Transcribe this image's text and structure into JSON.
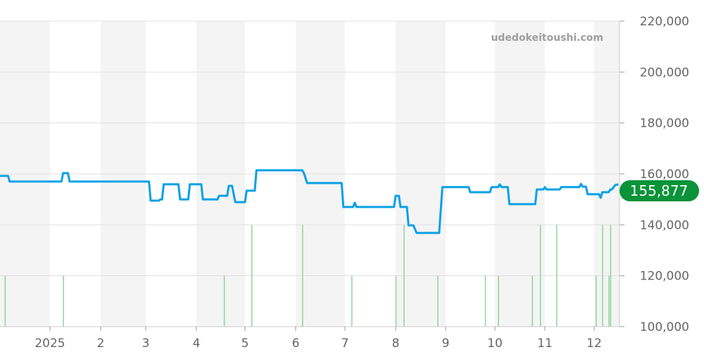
{
  "chart_data": {
    "type": "line",
    "watermark": "udedokeitoushi.com",
    "current_value_label": "155,877",
    "ylim": [
      100000,
      220000
    ],
    "y_ticks": [
      "100,000",
      "120,000",
      "140,000",
      "160,000",
      "180,000",
      "200,000",
      "220,000"
    ],
    "y_tick_values": [
      100000,
      120000,
      140000,
      160000,
      180000,
      200000,
      220000
    ],
    "xlim": [
      "2024-12-01",
      "2025-12-16"
    ],
    "x_ticks": [
      {
        "date": "2025-01-01",
        "label": "2025"
      },
      {
        "date": "2025-02-01",
        "label": "2"
      },
      {
        "date": "2025-03-01",
        "label": "3"
      },
      {
        "date": "2025-04-01",
        "label": "4"
      },
      {
        "date": "2025-05-01",
        "label": "5"
      },
      {
        "date": "2025-06-01",
        "label": "6"
      },
      {
        "date": "2025-07-01",
        "label": "7"
      },
      {
        "date": "2025-08-01",
        "label": "8"
      },
      {
        "date": "2025-09-01",
        "label": "9"
      },
      {
        "date": "2025-10-01",
        "label": "10"
      },
      {
        "date": "2025-11-01",
        "label": "11"
      },
      {
        "date": "2025-12-01",
        "label": "12"
      }
    ],
    "grid": true,
    "alternating_month_shading": true,
    "colors": {
      "line": "#0aa0e6",
      "volume": "#8fd49a",
      "badge": "#0a9338",
      "shade": "#f4f4f4",
      "grid": "#e0e0e0"
    },
    "series": [
      {
        "points": [
          [
            "2024-12-01",
            159200
          ],
          [
            "2024-12-06",
            159200
          ],
          [
            "2024-12-07",
            157000
          ],
          [
            "2025-01-08",
            157000
          ],
          [
            "2025-01-09",
            160300
          ],
          [
            "2025-01-12",
            160300
          ],
          [
            "2025-01-13",
            157000
          ],
          [
            "2025-03-03",
            157000
          ],
          [
            "2025-03-04",
            149500
          ],
          [
            "2025-03-09",
            149500
          ],
          [
            "2025-03-10",
            150000
          ],
          [
            "2025-03-11",
            150000
          ],
          [
            "2025-03-12",
            155900
          ],
          [
            "2025-03-21",
            155900
          ],
          [
            "2025-03-22",
            150000
          ],
          [
            "2025-03-27",
            150000
          ],
          [
            "2025-03-28",
            155900
          ],
          [
            "2025-04-04",
            155900
          ],
          [
            "2025-04-05",
            150000
          ],
          [
            "2025-04-14",
            150000
          ],
          [
            "2025-04-15",
            151400
          ],
          [
            "2025-04-20",
            151400
          ],
          [
            "2025-04-21",
            155300
          ],
          [
            "2025-04-23",
            155300
          ],
          [
            "2025-04-25",
            148900
          ],
          [
            "2025-05-01",
            148900
          ],
          [
            "2025-05-02",
            153400
          ],
          [
            "2025-05-07",
            153400
          ],
          [
            "2025-05-08",
            161400
          ],
          [
            "2025-06-05",
            161400
          ],
          [
            "2025-06-06",
            160300
          ],
          [
            "2025-06-08",
            156400
          ],
          [
            "2025-06-29",
            156400
          ],
          [
            "2025-06-30",
            147000
          ],
          [
            "2025-07-06",
            147000
          ],
          [
            "2025-07-07",
            148700
          ],
          [
            "2025-07-08",
            147000
          ],
          [
            "2025-07-31",
            147000
          ],
          [
            "2025-08-01",
            151400
          ],
          [
            "2025-08-03",
            151400
          ],
          [
            "2025-08-04",
            147000
          ],
          [
            "2025-08-08",
            147000
          ],
          [
            "2025-08-09",
            139800
          ],
          [
            "2025-08-12",
            139800
          ],
          [
            "2025-08-14",
            136800
          ],
          [
            "2025-08-28",
            136800
          ],
          [
            "2025-08-30",
            154800
          ],
          [
            "2025-09-15",
            154800
          ],
          [
            "2025-09-16",
            152800
          ],
          [
            "2025-09-28",
            152800
          ],
          [
            "2025-09-29",
            154800
          ],
          [
            "2025-10-03",
            154800
          ],
          [
            "2025-10-04",
            155900
          ],
          [
            "2025-10-05",
            154800
          ],
          [
            "2025-10-09",
            154800
          ],
          [
            "2025-10-10",
            148100
          ],
          [
            "2025-10-26",
            148100
          ],
          [
            "2025-10-27",
            153900
          ],
          [
            "2025-10-31",
            153900
          ],
          [
            "2025-11-01",
            154800
          ],
          [
            "2025-11-02",
            153900
          ],
          [
            "2025-11-10",
            153900
          ],
          [
            "2025-11-11",
            154800
          ],
          [
            "2025-11-22",
            154800
          ],
          [
            "2025-11-23",
            156100
          ],
          [
            "2025-11-24",
            155000
          ],
          [
            "2025-11-26",
            155000
          ],
          [
            "2025-11-27",
            152000
          ],
          [
            "2025-12-04",
            152000
          ],
          [
            "2025-12-05",
            150600
          ],
          [
            "2025-12-06",
            152800
          ],
          [
            "2025-12-10",
            152800
          ],
          [
            "2025-12-11",
            153900
          ],
          [
            "2025-12-12",
            153900
          ],
          [
            "2025-12-14",
            155600
          ],
          [
            "2025-12-16",
            155877
          ]
        ]
      }
    ],
    "volume": [
      [
        "2024-12-04",
        1
      ],
      [
        "2025-01-09",
        1
      ],
      [
        "2025-04-18",
        1
      ],
      [
        "2025-05-05",
        2
      ],
      [
        "2025-06-05",
        2
      ],
      [
        "2025-07-05",
        1
      ],
      [
        "2025-08-01",
        1
      ],
      [
        "2025-08-06",
        2
      ],
      [
        "2025-08-27",
        1
      ],
      [
        "2025-09-25",
        1
      ],
      [
        "2025-10-03",
        1
      ],
      [
        "2025-10-24",
        1
      ],
      [
        "2025-10-29",
        2
      ],
      [
        "2025-11-08",
        2
      ],
      [
        "2025-12-02",
        1
      ],
      [
        "2025-12-06",
        2
      ],
      [
        "2025-12-10",
        1
      ],
      [
        "2025-12-11",
        2
      ]
    ]
  }
}
